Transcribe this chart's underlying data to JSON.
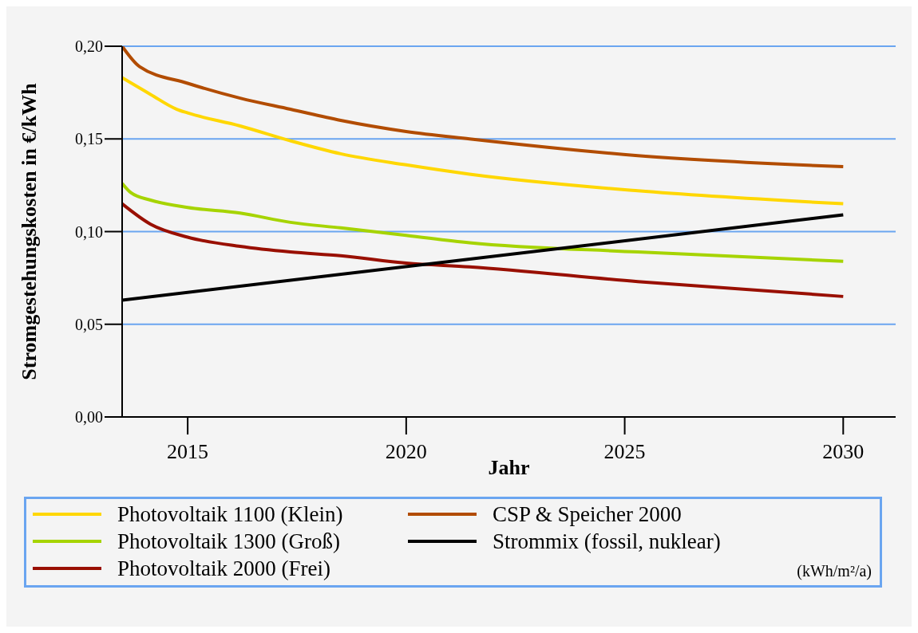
{
  "chart_data": {
    "type": "line",
    "xlabel": "Jahr",
    "ylabel": "Stromgestehungskosten in €/kWh",
    "xlim": [
      2013.5,
      2031.2
    ],
    "xticks": [
      2015,
      2020,
      2025,
      2030
    ],
    "ylim": [
      0,
      0.2
    ],
    "yticks": [
      {
        "value": 0,
        "label": "0,00"
      },
      {
        "value": 0.05,
        "label": "0,05"
      },
      {
        "value": 0.1,
        "label": "0,10"
      },
      {
        "value": 0.15,
        "label": "0,15"
      },
      {
        "value": 0.2,
        "label": "0,20"
      }
    ],
    "grid": "y",
    "legend": "bottom",
    "series": [
      {
        "name": "Photovoltaik 1100 (Klein)",
        "color": "#ffd700",
        "x": [
          2013.5,
          2014.15,
          2014.75,
          2015,
          2016.2,
          2017.35,
          2018.5,
          2020,
          2021.45,
          2025.3,
          2030
        ],
        "values": [
          0.183,
          0.174,
          0.166,
          0.164,
          0.157,
          0.149,
          0.142,
          0.136,
          0.131,
          0.122,
          0.115
        ]
      },
      {
        "name": "Photovoltaik 1300 (Groß)",
        "color": "#a6d400",
        "x": [
          2013.5,
          2013.7,
          2014.15,
          2015,
          2016.2,
          2017.35,
          2018.5,
          2020,
          2021.45,
          2025.3,
          2030
        ],
        "values": [
          0.126,
          0.121,
          0.117,
          0.113,
          0.11,
          0.105,
          0.102,
          0.098,
          0.094,
          0.089,
          0.084
        ]
      },
      {
        "name": "Photovoltaik 2000 (Frei)",
        "color": "#990f00",
        "x": [
          2013.5,
          2014.15,
          2015,
          2016.2,
          2017.35,
          2018.5,
          2020,
          2021.45,
          2025.3,
          2030
        ],
        "values": [
          0.115,
          0.104,
          0.097,
          0.092,
          0.089,
          0.087,
          0.083,
          0.081,
          0.073,
          0.065
        ]
      },
      {
        "name": "CSP & Speicher 2000",
        "color": "#b24c00",
        "x": [
          2013.5,
          2013.9,
          2015,
          2016.2,
          2017.35,
          2018.5,
          2020,
          2021.45,
          2025.3,
          2030
        ],
        "values": [
          0.2,
          0.189,
          0.18,
          0.172,
          0.166,
          0.16,
          0.154,
          0.15,
          0.141,
          0.135
        ]
      },
      {
        "name": "Strommix (fossil, nuklear)",
        "color": "#000000",
        "x": [
          2013.5,
          2030
        ],
        "values": [
          0.063,
          0.109
        ]
      }
    ],
    "annotations": [
      "(kWh/m²/a)"
    ]
  }
}
